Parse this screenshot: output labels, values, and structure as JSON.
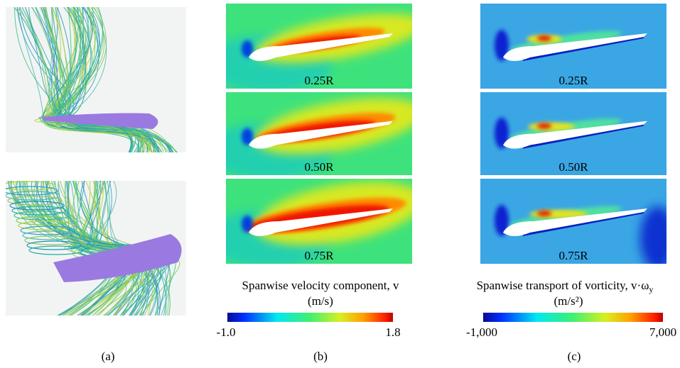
{
  "panels": [
    {
      "label": "(a)"
    },
    {
      "label": "(b)",
      "slices": [
        "0.25R",
        "0.50R",
        "0.75R"
      ],
      "colorbar": {
        "title": "Spanwise velocity component, v",
        "units": "(m/s)",
        "min_label": "-1.0",
        "max_label": "1.8"
      }
    },
    {
      "label": "(c)",
      "slices": [
        "0.25R",
        "0.50R",
        "0.75R"
      ],
      "colorbar": {
        "title": "Spanwise transport of vorticity, v·ω",
        "title_subscript": "y",
        "units": "(m/s²)",
        "min_label": "-1,000",
        "max_label": "7,000"
      }
    }
  ]
}
